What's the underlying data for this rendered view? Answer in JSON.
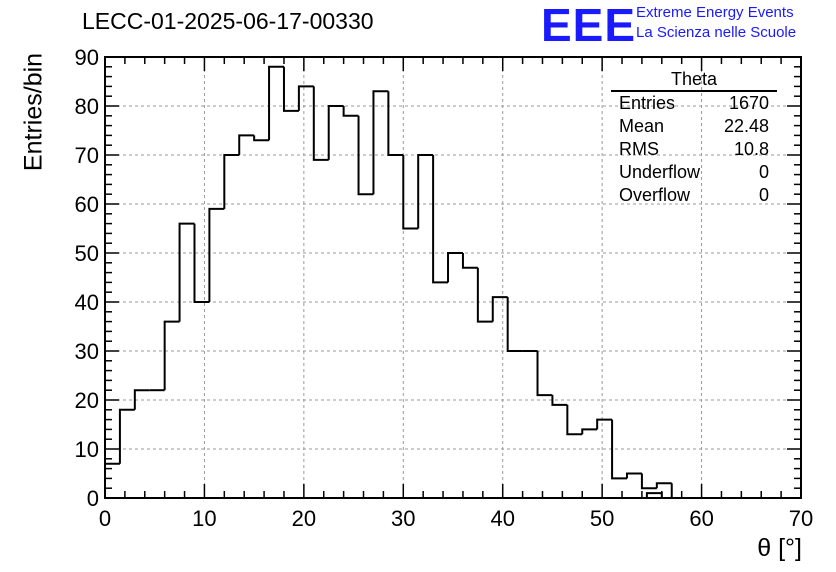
{
  "title": "LECC-01-2025-06-17-00330",
  "logo": {
    "mark": "EEE",
    "line1": "Extreme Energy Events",
    "line2": "La Scienza nelle Scuole",
    "color": "#1a1aff"
  },
  "stats": {
    "title": "Theta",
    "rows": [
      {
        "label": "Entries",
        "value": "1670"
      },
      {
        "label": "Mean",
        "value": "22.48"
      },
      {
        "label": "RMS",
        "value": "10.8"
      },
      {
        "label": "Underflow",
        "value": "0"
      },
      {
        "label": "Overflow",
        "value": "0"
      }
    ]
  },
  "chart_data": {
    "type": "bar",
    "style": "step-histogram",
    "title": "LECC-01-2025-06-17-00330",
    "xlabel": "θ [°]",
    "ylabel": "Entries/bin",
    "xlim": [
      0,
      70
    ],
    "ylim": [
      0,
      90
    ],
    "grid": true,
    "bin_width": 1.5,
    "x_bin_low_edges": [
      0,
      1.5,
      3,
      4.5,
      6,
      7.5,
      9,
      10.5,
      12,
      13.5,
      15,
      16.5,
      18,
      19.5,
      21,
      22.5,
      24,
      25.5,
      27,
      28.5,
      30,
      31.5,
      33,
      34.5,
      36,
      37.5,
      39,
      40.5,
      42,
      43.5,
      45,
      46.5,
      48,
      49.5,
      51,
      52.5,
      54,
      55.5
    ],
    "values": [
      7,
      18,
      22,
      22,
      36,
      56,
      40,
      59,
      70,
      74,
      73,
      88,
      79,
      84,
      69,
      80,
      78,
      62,
      83,
      70,
      55,
      70,
      44,
      50,
      47,
      36,
      41,
      30,
      30,
      21,
      19,
      13,
      14,
      16,
      4,
      5,
      2,
      3
    ],
    "extra_bins": [
      {
        "x_low": 54.5,
        "x_high": 56,
        "value": 1
      }
    ],
    "xticks": [
      "0",
      "10",
      "20",
      "30",
      "40",
      "50",
      "60",
      "70"
    ],
    "yticks": [
      "0",
      "10",
      "20",
      "30",
      "40",
      "50",
      "60",
      "70",
      "80",
      "90"
    ]
  }
}
